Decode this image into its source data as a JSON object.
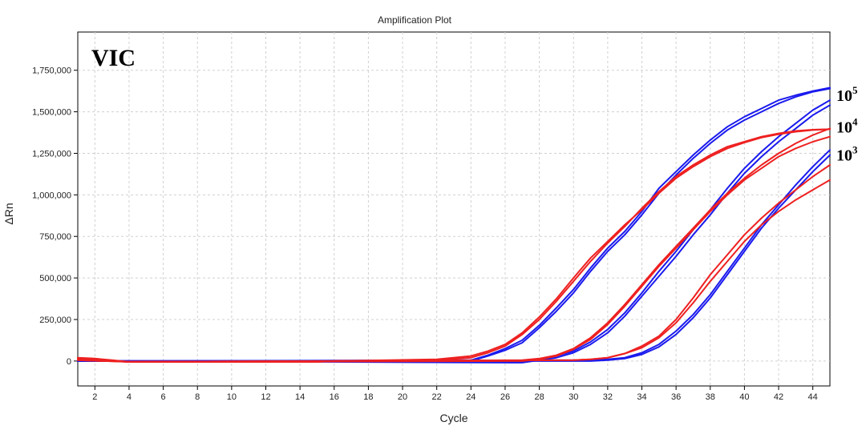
{
  "chart_data": {
    "type": "line",
    "title": "Amplification Plot",
    "xlabel": "Cycle",
    "ylabel": "ΔRn",
    "xlim": [
      1,
      45
    ],
    "ylim": [
      -150000,
      1980000
    ],
    "xticks": [
      2,
      4,
      6,
      8,
      10,
      12,
      14,
      16,
      18,
      20,
      22,
      24,
      26,
      28,
      30,
      32,
      34,
      36,
      38,
      40,
      42,
      44
    ],
    "yticks": [
      {
        "value": 0,
        "label": "0"
      },
      {
        "value": 250000,
        "label": "250,000"
      },
      {
        "value": 500000,
        "label": "500,000"
      },
      {
        "value": 750000,
        "label": "750,000"
      },
      {
        "value": 1000000,
        "label": "1,000,000"
      },
      {
        "value": 1250000,
        "label": "1,250,000"
      },
      {
        "value": 1500000,
        "label": "1,500,000"
      },
      {
        "value": 1750000,
        "label": "1,750,000"
      }
    ],
    "grid": true,
    "inset_label": "VIC",
    "colors": {
      "blue": "#1a1aee",
      "red": "#ee2020",
      "grid": "#d0d0d0",
      "axis": "#000000"
    },
    "annotations": [
      {
        "base": "10",
        "exp": "5",
        "y": 1600000
      },
      {
        "base": "10",
        "exp": "4",
        "y": 1410000
      },
      {
        "base": "10",
        "exp": "3",
        "y": 1240000
      }
    ],
    "series": [
      {
        "color": "blue",
        "x": [
          1,
          4,
          24,
          25,
          26,
          27,
          28,
          29,
          30,
          31,
          32,
          33,
          34,
          35,
          36,
          37,
          38,
          39,
          40,
          41,
          42,
          43,
          44,
          45
        ],
        "y": [
          0,
          0,
          0,
          30000,
          65000,
          110000,
          200000,
          300000,
          410000,
          540000,
          660000,
          760000,
          880000,
          1010000,
          1120000,
          1220000,
          1310000,
          1390000,
          1450000,
          1500000,
          1550000,
          1590000,
          1620000,
          1640000
        ]
      },
      {
        "color": "blue",
        "x": [
          1,
          4,
          24,
          25,
          26,
          27,
          28,
          29,
          30,
          31,
          32,
          33,
          34,
          35,
          36,
          37,
          38,
          39,
          40,
          41,
          42,
          43,
          44,
          45
        ],
        "y": [
          0,
          0,
          5000,
          35000,
          75000,
          125000,
          215000,
          320000,
          430000,
          560000,
          680000,
          780000,
          900000,
          1040000,
          1140000,
          1240000,
          1330000,
          1410000,
          1470000,
          1520000,
          1570000,
          1600000,
          1625000,
          1645000
        ]
      },
      {
        "color": "blue",
        "x": [
          1,
          4,
          27,
          28,
          29,
          30,
          31,
          32,
          33,
          34,
          35,
          36,
          37,
          38,
          39,
          40,
          41,
          42,
          43,
          44,
          45
        ],
        "y": [
          0,
          0,
          -10000,
          5000,
          20000,
          50000,
          100000,
          170000,
          270000,
          390000,
          510000,
          630000,
          760000,
          880000,
          1010000,
          1130000,
          1230000,
          1320000,
          1400000,
          1480000,
          1540000
        ]
      },
      {
        "color": "blue",
        "x": [
          1,
          4,
          27,
          28,
          29,
          30,
          31,
          32,
          33,
          34,
          35,
          36,
          37,
          38,
          39,
          40,
          41,
          42,
          43,
          44,
          45
        ],
        "y": [
          0,
          0,
          -5000,
          10000,
          30000,
          60000,
          115000,
          190000,
          290000,
          410000,
          540000,
          660000,
          790000,
          910000,
          1040000,
          1160000,
          1260000,
          1350000,
          1430000,
          1510000,
          1570000
        ]
      },
      {
        "color": "blue",
        "x": [
          1,
          4,
          31,
          32,
          33,
          34,
          35,
          36,
          37,
          38,
          39,
          40,
          41,
          42,
          43,
          44,
          45
        ],
        "y": [
          0,
          0,
          0,
          5000,
          15000,
          40000,
          85000,
          160000,
          260000,
          380000,
          520000,
          660000,
          800000,
          920000,
          1030000,
          1140000,
          1240000
        ]
      },
      {
        "color": "blue",
        "x": [
          1,
          4,
          31,
          32,
          33,
          34,
          35,
          36,
          37,
          38,
          39,
          40,
          41,
          42,
          43,
          44,
          45
        ],
        "y": [
          0,
          0,
          5000,
          10000,
          20000,
          50000,
          100000,
          180000,
          280000,
          400000,
          540000,
          680000,
          820000,
          940000,
          1060000,
          1170000,
          1270000
        ]
      },
      {
        "color": "red",
        "x": [
          1,
          2,
          3,
          4,
          15,
          16,
          22,
          24,
          25,
          26,
          27,
          28,
          29,
          30,
          31,
          32,
          33,
          34,
          35,
          36,
          37,
          38,
          39,
          40,
          41,
          42,
          43,
          44,
          45
        ],
        "y": [
          15000,
          10000,
          0,
          -5000,
          -5000,
          0,
          5000,
          20000,
          50000,
          90000,
          160000,
          250000,
          360000,
          480000,
          600000,
          710000,
          810000,
          920000,
          1020000,
          1110000,
          1180000,
          1240000,
          1290000,
          1320000,
          1350000,
          1370000,
          1385000,
          1392000,
          1395000
        ]
      },
      {
        "color": "red",
        "x": [
          1,
          2,
          3,
          4,
          15,
          16,
          22,
          24,
          25,
          26,
          27,
          28,
          29,
          30,
          31,
          32,
          33,
          34,
          35,
          36,
          37,
          38,
          39,
          40,
          41,
          42,
          43,
          44,
          45
        ],
        "y": [
          20000,
          15000,
          5000,
          -5000,
          -5000,
          0,
          10000,
          30000,
          60000,
          100000,
          170000,
          265000,
          375000,
          500000,
          620000,
          720000,
          820000,
          910000,
          1010000,
          1100000,
          1170000,
          1230000,
          1280000,
          1315000,
          1345000,
          1365000,
          1380000,
          1390000,
          1395000
        ]
      },
      {
        "color": "red",
        "x": [
          1,
          4,
          27,
          28,
          29,
          30,
          31,
          32,
          33,
          34,
          35,
          36,
          37,
          38,
          39,
          40,
          41,
          42,
          43,
          44,
          45
        ],
        "y": [
          5000,
          -5000,
          0,
          10000,
          30000,
          70000,
          130000,
          220000,
          330000,
          450000,
          570000,
          680000,
          790000,
          900000,
          1000000,
          1090000,
          1160000,
          1230000,
          1280000,
          1320000,
          1350000
        ]
      },
      {
        "color": "red",
        "x": [
          1,
          4,
          27,
          28,
          29,
          30,
          31,
          32,
          33,
          34,
          35,
          36,
          37,
          38,
          39,
          40,
          41,
          42,
          43,
          44,
          45
        ],
        "y": [
          10000,
          -5000,
          5000,
          15000,
          35000,
          75000,
          140000,
          230000,
          340000,
          460000,
          580000,
          690000,
          800000,
          910000,
          1010000,
          1100000,
          1180000,
          1250000,
          1310000,
          1360000,
          1400000
        ]
      },
      {
        "color": "red",
        "x": [
          1,
          4,
          30,
          31,
          32,
          33,
          34,
          35,
          36,
          37,
          38,
          39,
          40,
          41,
          42,
          43,
          44,
          45
        ],
        "y": [
          5000,
          -5000,
          5000,
          10000,
          20000,
          45000,
          90000,
          150000,
          250000,
          380000,
          520000,
          640000,
          760000,
          860000,
          950000,
          1030000,
          1110000,
          1180000
        ]
      },
      {
        "color": "red",
        "x": [
          1,
          4,
          30,
          31,
          32,
          33,
          34,
          35,
          36,
          37,
          38,
          39,
          40,
          41,
          42,
          43,
          44,
          45
        ],
        "y": [
          10000,
          -5000,
          5000,
          10000,
          20000,
          45000,
          80000,
          140000,
          230000,
          350000,
          480000,
          600000,
          720000,
          820000,
          900000,
          970000,
          1030000,
          1090000
        ]
      }
    ]
  }
}
